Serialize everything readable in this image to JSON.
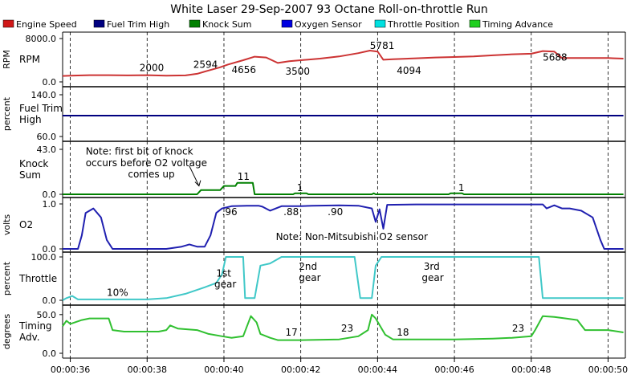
{
  "window": {
    "title": "White Laser   29-Sep-2007   93 Octane   Roll-on-throttle Run"
  },
  "legend": [
    {
      "name": "Engine Speed",
      "color": "#d01818"
    },
    {
      "name": "Fuel Trim High",
      "color": "#000080"
    },
    {
      "name": "Knock Sum",
      "color": "#008000"
    },
    {
      "name": "Oxygen Sensor",
      "color": "#0000e0"
    },
    {
      "name": "Throttle Position",
      "color": "#00e0e0"
    },
    {
      "name": "Timing Advance",
      "color": "#20d020"
    }
  ],
  "chart_data": {
    "type": "line",
    "x_ticks": [
      "00:00:36",
      "00:00:38",
      "00:00:40",
      "00:00:42",
      "00:00:44",
      "00:00:46",
      "00:00:48",
      "00:00:50"
    ],
    "x_tick_values": [
      36,
      38,
      40,
      42,
      44,
      46,
      48,
      50
    ],
    "xlim": [
      35.8,
      50.45
    ],
    "grid": "vertical dashed at each x tick",
    "panels": [
      {
        "unit": "RPM",
        "name": "RPM",
        "ylim": [
          0,
          8000
        ],
        "yticks": [
          "8000.0",
          "0.0"
        ],
        "color": "#cc3333",
        "series": [
          [
            35.8,
            1100
          ],
          [
            36,
            1150
          ],
          [
            36.5,
            1250
          ],
          [
            37,
            1250
          ],
          [
            37.5,
            1200
          ],
          [
            38,
            1250
          ],
          [
            38.5,
            1150
          ],
          [
            39,
            1200
          ],
          [
            39.3,
            1500
          ],
          [
            39.6,
            2100
          ],
          [
            39.9,
            2700
          ],
          [
            40.1,
            3200
          ],
          [
            40.5,
            4000
          ],
          [
            40.8,
            4656
          ],
          [
            41.1,
            4500
          ],
          [
            41.4,
            3500
          ],
          [
            41.7,
            3800
          ],
          [
            42,
            4000
          ],
          [
            42.5,
            4300
          ],
          [
            43,
            4700
          ],
          [
            43.5,
            5300
          ],
          [
            43.8,
            5781
          ],
          [
            44,
            5600
          ],
          [
            44.15,
            4094
          ],
          [
            44.4,
            4200
          ],
          [
            45,
            4350
          ],
          [
            45.5,
            4500
          ],
          [
            46,
            4600
          ],
          [
            46.5,
            4700
          ],
          [
            47,
            4900
          ],
          [
            47.5,
            5100
          ],
          [
            48,
            5200
          ],
          [
            48.3,
            5688
          ],
          [
            48.6,
            5600
          ],
          [
            48.8,
            4400
          ],
          [
            49.5,
            4400
          ],
          [
            50,
            4400
          ],
          [
            50.4,
            4300
          ]
        ],
        "annotations": [
          {
            "text": "2000",
            "x": 37.8,
            "y": 2000
          },
          {
            "text": "2594",
            "x": 39.2,
            "y": 2594
          },
          {
            "text": "4656",
            "x": 40.2,
            "y": 1600
          },
          {
            "text": "3500",
            "x": 41.6,
            "y": 1300
          },
          {
            "text": "5781",
            "x": 43.8,
            "y": 6100
          },
          {
            "text": "4094",
            "x": 44.5,
            "y": 1500
          },
          {
            "text": "5688",
            "x": 48.3,
            "y": 3900
          }
        ]
      },
      {
        "unit": "percent",
        "name": "Fuel Trim High",
        "ylim": [
          60,
          140
        ],
        "yticks": [
          "140.0",
          "60.0"
        ],
        "color": "#000080",
        "series": [
          [
            35.8,
            100
          ],
          [
            50.4,
            100
          ]
        ],
        "annotations": []
      },
      {
        "unit": "",
        "name": "Knock Sum",
        "ylim": [
          0,
          43
        ],
        "yticks": [
          "43.0",
          "0.0"
        ],
        "color": "#008000",
        "series": [
          [
            35.8,
            0
          ],
          [
            39.3,
            0
          ],
          [
            39.4,
            4
          ],
          [
            39.9,
            4
          ],
          [
            40,
            8
          ],
          [
            40.3,
            8
          ],
          [
            40.35,
            11
          ],
          [
            40.75,
            11
          ],
          [
            40.8,
            0
          ],
          [
            41.8,
            0
          ],
          [
            41.85,
            1
          ],
          [
            42.15,
            1
          ],
          [
            42.2,
            0
          ],
          [
            43.85,
            0
          ],
          [
            43.9,
            1
          ],
          [
            43.95,
            0
          ],
          [
            45.85,
            0
          ],
          [
            45.9,
            1
          ],
          [
            46.2,
            1
          ],
          [
            46.25,
            0
          ],
          [
            50.4,
            0
          ]
        ],
        "annotations": [
          {
            "text": "11",
            "x": 40.35,
            "y": 14
          },
          {
            "text": "1",
            "x": 41.9,
            "y": 3
          },
          {
            "text": "1",
            "x": 46.1,
            "y": 3
          },
          {
            "text": "Note:  first bit of knock",
            "x": 36.4,
            "y": 38
          },
          {
            "text": "occurs before O2 voltage",
            "x": 36.4,
            "y": 27
          },
          {
            "text": "comes up",
            "x": 37.5,
            "y": 16
          }
        ]
      },
      {
        "unit": "volts",
        "name": "O2",
        "ylim": [
          0,
          1
        ],
        "yticks": [
          "1.0",
          "0.0"
        ],
        "color": "#2020b0",
        "series": [
          [
            35.8,
            0
          ],
          [
            36.2,
            0
          ],
          [
            36.3,
            0.3
          ],
          [
            36.4,
            0.8
          ],
          [
            36.6,
            0.9
          ],
          [
            36.8,
            0.7
          ],
          [
            36.95,
            0.2
          ],
          [
            37.1,
            0
          ],
          [
            38.5,
            0
          ],
          [
            38.9,
            0.05
          ],
          [
            39.1,
            0.1
          ],
          [
            39.3,
            0.05
          ],
          [
            39.5,
            0.05
          ],
          [
            39.65,
            0.3
          ],
          [
            39.8,
            0.8
          ],
          [
            39.95,
            0.9
          ],
          [
            40.2,
            0.95
          ],
          [
            40.6,
            0.96
          ],
          [
            40.9,
            0.96
          ],
          [
            41,
            0.94
          ],
          [
            41.2,
            0.85
          ],
          [
            41.5,
            0.95
          ],
          [
            42,
            0.95
          ],
          [
            42.3,
            0.96
          ],
          [
            43,
            0.97
          ],
          [
            43.5,
            0.96
          ],
          [
            43.85,
            0.9
          ],
          [
            43.95,
            0.6
          ],
          [
            44.05,
            0.88
          ],
          [
            44.15,
            0.45
          ],
          [
            44.25,
            0.98
          ],
          [
            45,
            0.99
          ],
          [
            47,
            0.99
          ],
          [
            48.3,
            0.99
          ],
          [
            48.4,
            0.9
          ],
          [
            48.6,
            0.97
          ],
          [
            48.8,
            0.9
          ],
          [
            49,
            0.9
          ],
          [
            49.3,
            0.85
          ],
          [
            49.6,
            0.7
          ],
          [
            49.8,
            0.2
          ],
          [
            49.9,
            0
          ],
          [
            50.4,
            0
          ]
        ],
        "annotations": [
          {
            "text": ".96",
            "x": 39.95,
            "y": 0.75
          },
          {
            "text": ".88",
            "x": 41.55,
            "y": 0.75
          },
          {
            "text": ".90",
            "x": 42.7,
            "y": 0.75
          },
          {
            "text": "Note:  Non-Mitsubishi O2 sensor",
            "x": 41.35,
            "y": 0.2
          }
        ]
      },
      {
        "unit": "percent",
        "name": "Throttle",
        "ylim": [
          0,
          100
        ],
        "yticks": [
          "100.0",
          "0.0"
        ],
        "color": "#40c8c8",
        "series": [
          [
            35.8,
            0
          ],
          [
            35.9,
            5
          ],
          [
            36.05,
            10
          ],
          [
            36.2,
            2
          ],
          [
            37,
            2
          ],
          [
            38,
            2
          ],
          [
            38.5,
            5
          ],
          [
            39,
            15
          ],
          [
            39.5,
            30
          ],
          [
            39.8,
            40
          ],
          [
            39.95,
            60
          ],
          [
            40.05,
            100
          ],
          [
            40.5,
            100
          ],
          [
            40.55,
            5
          ],
          [
            40.8,
            5
          ],
          [
            40.95,
            80
          ],
          [
            41.2,
            85
          ],
          [
            41.5,
            100
          ],
          [
            43.4,
            100
          ],
          [
            43.55,
            5
          ],
          [
            43.85,
            5
          ],
          [
            43.95,
            80
          ],
          [
            44.1,
            100
          ],
          [
            48.2,
            100
          ],
          [
            48.3,
            5
          ],
          [
            50.4,
            5
          ]
        ],
        "annotations": [
          {
            "text": "10%",
            "x": 36.95,
            "y": 10
          },
          {
            "text": "1st",
            "x": 39.8,
            "y": 55
          },
          {
            "text": "gear",
            "x": 39.75,
            "y": 30
          },
          {
            "text": "2nd",
            "x": 41.95,
            "y": 70
          },
          {
            "text": "gear",
            "x": 41.95,
            "y": 44
          },
          {
            "text": "3rd",
            "x": 45.2,
            "y": 70
          },
          {
            "text": "gear",
            "x": 45.15,
            "y": 44
          }
        ]
      },
      {
        "unit": "degrees",
        "name": "Timing Adv.",
        "ylim": [
          0,
          55
        ],
        "yticks": [
          "50.0",
          "0.0"
        ],
        "color": "#30c030",
        "series": [
          [
            35.8,
            35
          ],
          [
            35.9,
            42
          ],
          [
            36,
            38
          ],
          [
            36.3,
            43
          ],
          [
            36.5,
            45
          ],
          [
            37,
            45
          ],
          [
            37.1,
            30
          ],
          [
            37.4,
            28
          ],
          [
            38.3,
            28
          ],
          [
            38.5,
            30
          ],
          [
            38.6,
            36
          ],
          [
            38.8,
            32
          ],
          [
            39.3,
            30
          ],
          [
            39.6,
            25
          ],
          [
            39.95,
            22
          ],
          [
            40.2,
            20
          ],
          [
            40.5,
            22
          ],
          [
            40.7,
            48
          ],
          [
            40.85,
            40
          ],
          [
            40.95,
            25
          ],
          [
            41.2,
            20
          ],
          [
            41.4,
            17
          ],
          [
            41.6,
            17
          ],
          [
            42,
            17
          ],
          [
            43,
            18
          ],
          [
            43.5,
            22
          ],
          [
            43.75,
            30
          ],
          [
            43.85,
            50
          ],
          [
            43.95,
            45
          ],
          [
            44.2,
            24
          ],
          [
            44.4,
            18
          ],
          [
            45,
            18
          ],
          [
            46,
            18
          ],
          [
            47,
            19
          ],
          [
            47.5,
            20
          ],
          [
            48,
            22
          ],
          [
            48.1,
            30
          ],
          [
            48.3,
            48
          ],
          [
            48.6,
            47
          ],
          [
            48.9,
            45
          ],
          [
            49.2,
            43
          ],
          [
            49.4,
            30
          ],
          [
            50,
            30
          ],
          [
            50.4,
            27
          ]
        ],
        "annotations": [
          {
            "text": "17",
            "x": 41.6,
            "y": 23
          },
          {
            "text": "23",
            "x": 43.05,
            "y": 28
          },
          {
            "text": "18",
            "x": 44.5,
            "y": 23
          },
          {
            "text": "23",
            "x": 47.5,
            "y": 28
          }
        ]
      }
    ]
  }
}
